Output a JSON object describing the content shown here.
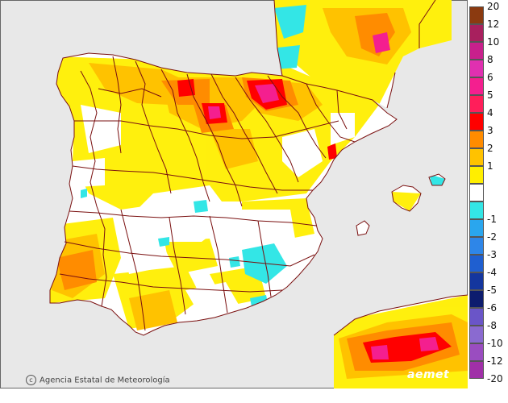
{
  "credit": "Agencia Estatal de Meteorología",
  "brand": "aemet",
  "legend": {
    "positive": [
      {
        "label": "20",
        "color": "#8b3a10"
      },
      {
        "label": "12",
        "color": "#a8205e"
      },
      {
        "label": "10",
        "color": "#c8208c"
      },
      {
        "label": "8",
        "color": "#e030b0"
      },
      {
        "label": "6",
        "color": "#f41f8f"
      },
      {
        "label": "5",
        "color": "#ff1e5a"
      },
      {
        "label": "4",
        "color": "#ff0000"
      },
      {
        "label": "3",
        "color": "#ff8c00"
      },
      {
        "label": "2",
        "color": "#ffc200"
      },
      {
        "label": "1",
        "color": "#ffef00"
      }
    ],
    "neutral_color": "#ffffff",
    "negative": [
      {
        "label": "-1",
        "color": "#33e6e6"
      },
      {
        "label": "-2",
        "color": "#2aa6ee"
      },
      {
        "label": "-3",
        "color": "#2e86e8"
      },
      {
        "label": "-4",
        "color": "#1f5fd0"
      },
      {
        "label": "-5",
        "color": "#14369e"
      },
      {
        "label": "-6",
        "color": "#0d1c6e"
      },
      {
        "label": "-8",
        "color": "#6a55c8"
      },
      {
        "label": "-10",
        "color": "#8a6ad0"
      },
      {
        "label": "-12",
        "color": "#9a4dc0"
      },
      {
        "label": "-20",
        "color": "#a030a8"
      }
    ]
  },
  "colors": {
    "sea": "#e8e8e8",
    "land_base": "#ffffff",
    "borders": "#7a1010"
  }
}
